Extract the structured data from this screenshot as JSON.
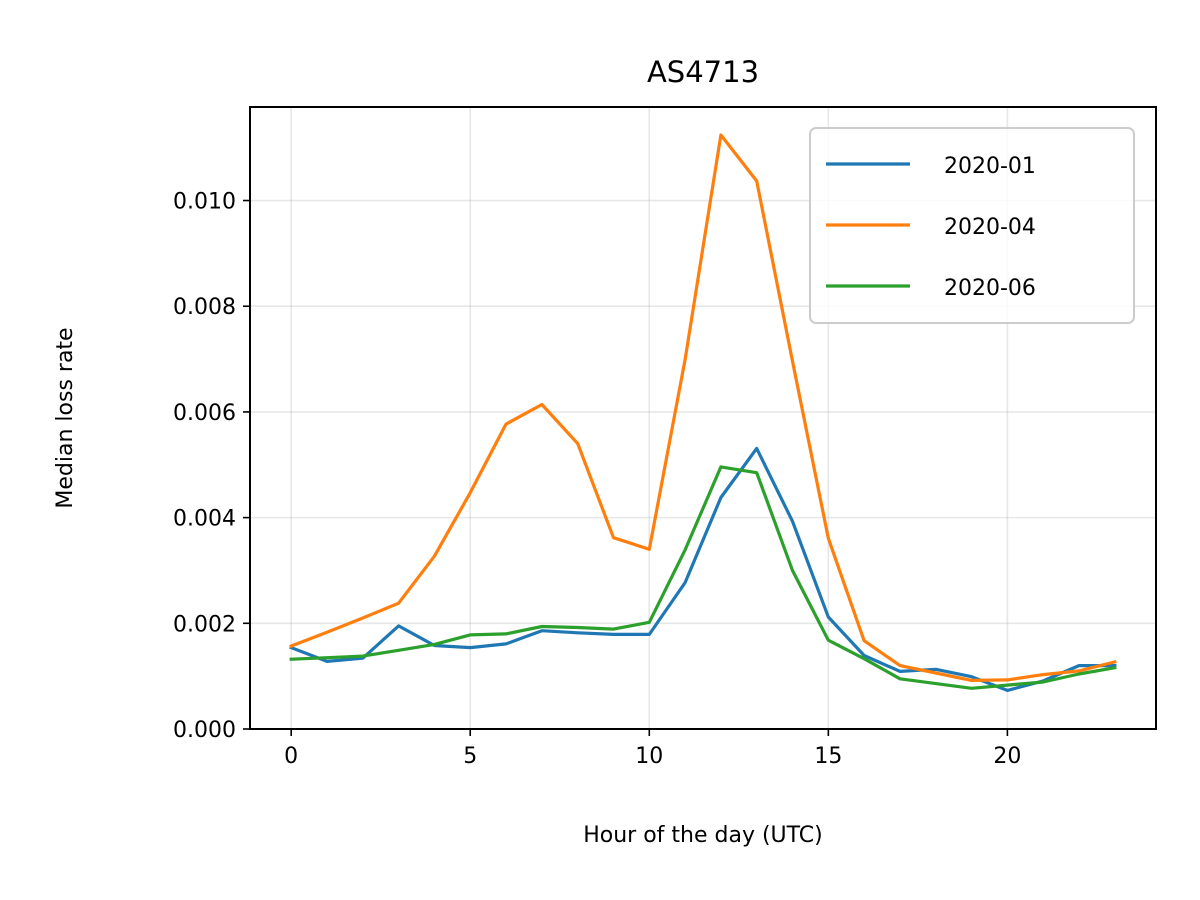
{
  "chart_data": {
    "type": "line",
    "title": "AS4713",
    "xlabel": "Hour of the day (UTC)",
    "ylabel": "Median loss rate",
    "xlim": [
      -1.15,
      24.15
    ],
    "ylim": [
      0,
      0.01177
    ],
    "xticks": [
      0,
      5,
      10,
      15,
      20
    ],
    "xtick_labels": [
      "0",
      "5",
      "10",
      "15",
      "20"
    ],
    "yticks": [
      0,
      0.002,
      0.004,
      0.006,
      0.008,
      0.01
    ],
    "ytick_labels": [
      "0.000",
      "0.002",
      "0.004",
      "0.006",
      "0.008",
      "0.010"
    ],
    "grid": true,
    "legend_position": "top-right",
    "x": [
      0,
      1,
      2,
      3,
      4,
      5,
      6,
      7,
      8,
      9,
      10,
      11,
      12,
      13,
      14,
      15,
      16,
      17,
      18,
      19,
      20,
      21,
      22,
      23
    ],
    "series": [
      {
        "name": "2020-01",
        "color": "#1f77b4",
        "values": [
          0.00154,
          0.00128,
          0.00134,
          0.00195,
          0.00158,
          0.00154,
          0.00161,
          0.00186,
          0.00182,
          0.00179,
          0.00179,
          0.00277,
          0.00438,
          0.00531,
          0.00393,
          0.00212,
          0.00139,
          0.00109,
          0.00113,
          0.00099,
          0.00073,
          0.00091,
          0.0012,
          0.0012
        ]
      },
      {
        "name": "2020-04",
        "color": "#ff7f0e",
        "values": [
          0.00157,
          0.00183,
          0.0021,
          0.00238,
          0.00327,
          0.00447,
          0.00577,
          0.00614,
          0.0054,
          0.00362,
          0.0034,
          0.00699,
          0.01124,
          0.01037,
          0.00696,
          0.00361,
          0.00167,
          0.0012,
          0.00106,
          0.00092,
          0.00093,
          0.00103,
          0.0011,
          0.00127
        ]
      },
      {
        "name": "2020-06",
        "color": "#2ca02c",
        "values": [
          0.00132,
          0.00135,
          0.00138,
          0.00149,
          0.0016,
          0.00178,
          0.0018,
          0.00194,
          0.00192,
          0.00189,
          0.00202,
          0.00339,
          0.00496,
          0.00485,
          0.003,
          0.00168,
          0.00133,
          0.00095,
          0.00086,
          0.00077,
          0.00083,
          0.00089,
          0.00104,
          0.00116
        ]
      }
    ]
  }
}
